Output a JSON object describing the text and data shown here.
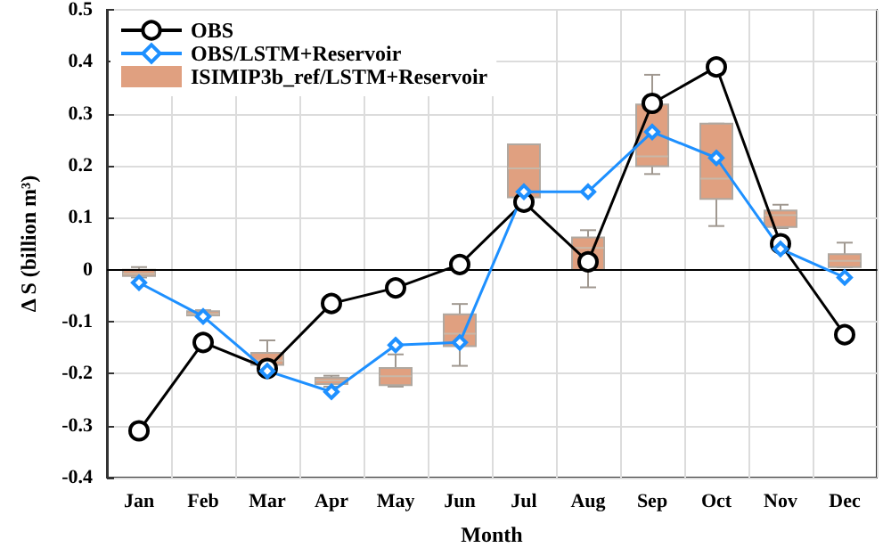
{
  "chart_data": {
    "type": "line",
    "xlabel": "Month",
    "ylabel": "Δ S (billion m³)",
    "categories": [
      "Jan",
      "Feb",
      "Mar",
      "Apr",
      "May",
      "Jun",
      "Jul",
      "Aug",
      "Sep",
      "Oct",
      "Nov",
      "Dec"
    ],
    "series": [
      {
        "name": "OBS",
        "color": "#000000",
        "marker": "circle",
        "values": [
          -0.31,
          -0.14,
          -0.19,
          -0.065,
          -0.035,
          0.01,
          0.13,
          0.015,
          0.32,
          0.39,
          0.05,
          -0.125
        ]
      },
      {
        "name": "OBS/LSTM+Reservoir",
        "color": "#1e90ff",
        "marker": "diamond",
        "values": [
          -0.025,
          -0.09,
          -0.195,
          -0.235,
          -0.145,
          -0.14,
          0.15,
          0.15,
          0.265,
          0.215,
          0.04,
          -0.015
        ]
      },
      {
        "name": "ISIMIP3b_ref/LSTM+Reservoir",
        "type": "box",
        "color": "#e0a080",
        "boxes": [
          {
            "low": -0.015,
            "q1": -0.012,
            "median": -0.008,
            "q3": 0.0,
            "high": 0.005
          },
          {
            "low": -0.09,
            "q1": -0.088,
            "median": -0.085,
            "q3": -0.08,
            "high": -0.078
          },
          {
            "low": -0.19,
            "q1": -0.183,
            "median": -0.175,
            "q3": -0.16,
            "high": -0.136
          },
          {
            "low": -0.225,
            "q1": -0.22,
            "median": -0.213,
            "q3": -0.208,
            "high": -0.204
          },
          {
            "low": -0.225,
            "q1": -0.222,
            "median": -0.205,
            "q3": -0.189,
            "high": -0.163
          },
          {
            "low": -0.185,
            "q1": -0.147,
            "median": -0.123,
            "q3": -0.086,
            "high": -0.066
          },
          {
            "low": 0.139,
            "q1": 0.139,
            "median": 0.195,
            "q3": 0.241,
            "high": 0.241
          },
          {
            "low": -0.034,
            "q1": 0.0,
            "median": 0.042,
            "q3": 0.062,
            "high": 0.076
          },
          {
            "low": 0.184,
            "q1": 0.199,
            "median": 0.218,
            "q3": 0.318,
            "high": 0.375
          },
          {
            "low": 0.084,
            "q1": 0.136,
            "median": 0.175,
            "q3": 0.281,
            "high": 0.281
          },
          {
            "low": 0.08,
            "q1": 0.082,
            "median": 0.105,
            "q3": 0.114,
            "high": 0.125
          },
          {
            "low": 0.005,
            "q1": 0.005,
            "median": 0.017,
            "q3": 0.03,
            "high": 0.052
          }
        ]
      }
    ],
    "ylim": [
      -0.4,
      0.5
    ],
    "yticks": [
      -0.4,
      -0.3,
      -0.2,
      -0.1,
      0,
      0.1,
      0.2,
      0.3,
      0.4,
      0.5
    ],
    "grid": true,
    "legend": "top left",
    "ref_lines": [
      {
        "axis": "y",
        "value": 0,
        "color": "#000000",
        "line_style": "solid"
      }
    ]
  }
}
